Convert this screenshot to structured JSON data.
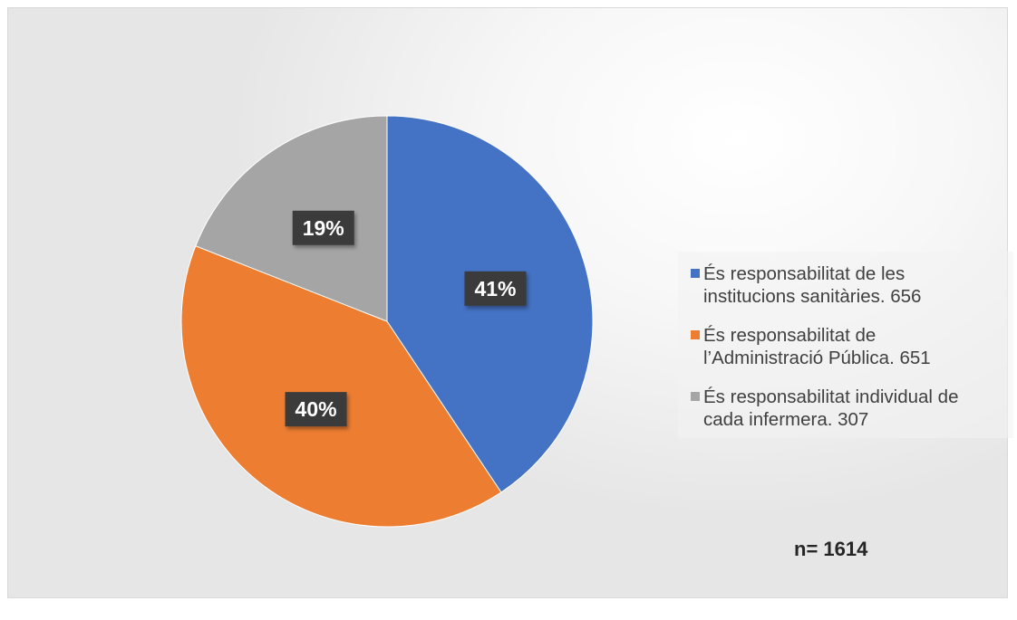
{
  "chart_data": {
    "type": "pie",
    "title": "",
    "slices": [
      {
        "label": "És responsabilitat de les institucions sanitàries. 656",
        "value": 656,
        "percent_label": "41%",
        "color": "#4472C4"
      },
      {
        "label": "És responsabilitat de l’Administració Pública. 651",
        "value": 651,
        "percent_label": "40%",
        "color": "#ED7D31"
      },
      {
        "label": "És responsabilitat individual de cada infermera. 307",
        "value": 307,
        "percent_label": "19%",
        "color": "#A5A5A5"
      }
    ],
    "legend_position": "right",
    "legend": [
      {
        "line1": "És responsabilitat de les",
        "line2": "institucions sanitàries. 656"
      },
      {
        "line1": "És responsabilitat de",
        "line2": "l’Administració Pública. 651"
      },
      {
        "line1": "És responsabilitat individual de",
        "line2": "cada infermera. 307"
      }
    ],
    "annotation": "n= 1614"
  }
}
